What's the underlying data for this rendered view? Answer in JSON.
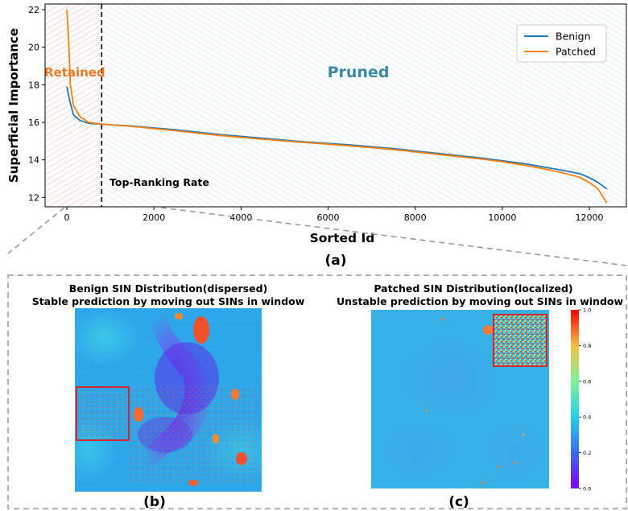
{
  "chart_data": [
    {
      "type": "line",
      "xlabel": "Sorted Id",
      "ylabel": "Superficial Importance",
      "xlim": [
        -500,
        12850
      ],
      "ylim": [
        11.5,
        22.3
      ],
      "xticks": [
        0,
        2000,
        4000,
        6000,
        8000,
        10000,
        12000
      ],
      "yticks": [
        12,
        14,
        16,
        18,
        20,
        22
      ],
      "grid": false,
      "legend_position": "top-right",
      "caption": "(a)",
      "threshold_x": 800,
      "threshold_label": "Top-Ranking Rate",
      "region_labels": {
        "retained": "Retained",
        "pruned": "Pruned"
      },
      "series": [
        {
          "name": "Benign",
          "color": "#1f77b4",
          "x": [
            0,
            60,
            150,
            300,
            500,
            800,
            1500,
            2500,
            3500,
            4500,
            5500,
            6500,
            7500,
            8500,
            9500,
            10000,
            10500,
            11000,
            11500,
            11800,
            12000,
            12200,
            12400
          ],
          "y": [
            17.9,
            17.2,
            16.4,
            16.1,
            15.95,
            15.9,
            15.8,
            15.6,
            15.35,
            15.15,
            14.95,
            14.8,
            14.6,
            14.35,
            14.1,
            13.95,
            13.8,
            13.6,
            13.4,
            13.25,
            13.05,
            12.8,
            12.45
          ]
        },
        {
          "name": "Patched",
          "color": "#ff7f0e",
          "x": [
            0,
            40,
            80,
            150,
            300,
            500,
            800,
            1500,
            2500,
            3500,
            4500,
            5500,
            6500,
            7500,
            8500,
            9500,
            10000,
            10500,
            11000,
            11500,
            11800,
            12000,
            12200,
            12400
          ],
          "y": [
            22.0,
            20.4,
            18.0,
            16.9,
            16.3,
            16.0,
            15.9,
            15.78,
            15.55,
            15.3,
            15.1,
            14.92,
            14.75,
            14.55,
            14.3,
            14.05,
            13.9,
            13.72,
            13.5,
            13.25,
            13.05,
            12.8,
            12.45,
            11.7
          ]
        }
      ]
    },
    {
      "type": "heatmap",
      "title": "Benign SIN Distribution(dispersed)",
      "subtitle": "Stable prediction by moving out SINs in window",
      "caption": "(b)",
      "pattern": "dispersed",
      "window_position": "left-middle",
      "colors": {
        "window": "#d62728"
      }
    },
    {
      "type": "heatmap",
      "title": "Patched SIN Distribution(localized)",
      "subtitle": "Unstable prediction by moving out SINs in window",
      "caption": "(c)",
      "pattern": "localized",
      "window_position": "top-right",
      "colors": {
        "window": "#d62728"
      },
      "colorbar": {
        "ticks": [
          "0.0",
          "0.2",
          "0.4",
          "0.6",
          "0.8",
          "1.0"
        ]
      }
    }
  ]
}
